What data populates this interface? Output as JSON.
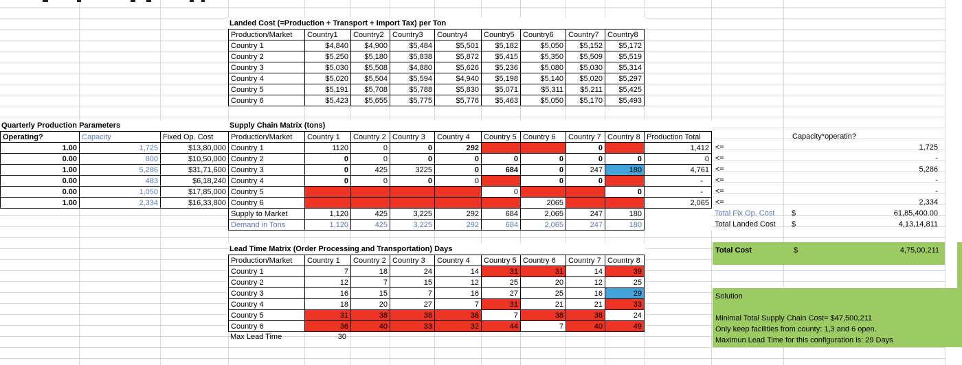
{
  "colors": {
    "red": "#ED3323",
    "blue_cell": "#45A3DA",
    "blue_text": "#5B7AB5",
    "green": "#9CCB63",
    "gridline": "#D9D9D9"
  },
  "landed_cost": {
    "title": "Landed Cost (=Production + Transport + Import Tax) per Ton",
    "corner_header": "Production/Market",
    "col_headers": [
      "Country1",
      "Country2",
      "Country3",
      "Country4",
      "Country5",
      "Country6",
      "Country7",
      "Country8"
    ],
    "rows": [
      {
        "label": "Country 1",
        "values": [
          "$4,840",
          "$4,900",
          "$5,484",
          "$5,501",
          "$5,182",
          "$5,050",
          "$5,152",
          "$5,172"
        ]
      },
      {
        "label": "Country 2",
        "values": [
          "$5,250",
          "$5,180",
          "$5,838",
          "$5,872",
          "$5,415",
          "$5,350",
          "$5,509",
          "$5,519"
        ]
      },
      {
        "label": "Country 3",
        "values": [
          "$5,030",
          "$5,508",
          "$4,880",
          "$5,626",
          "$5,236",
          "$5,080",
          "$5,030",
          "$5,314"
        ]
      },
      {
        "label": "Country 4",
        "values": [
          "$5,020",
          "$5,504",
          "$5,594",
          "$4,940",
          "$5,198",
          "$5,140",
          "$5,020",
          "$5,297"
        ]
      },
      {
        "label": "Country 5",
        "values": [
          "$5,191",
          "$5,708",
          "$5,788",
          "$5,830",
          "$5,071",
          "$5,311",
          "$5,211",
          "$5,425"
        ]
      },
      {
        "label": "Country 6",
        "values": [
          "$5,423",
          "$5,655",
          "$5,775",
          "$5,776",
          "$5,463",
          "$5,050",
          "$5,170",
          "$5,493"
        ]
      }
    ]
  },
  "production_params": {
    "title": "Quarterly Production Parameters",
    "headers": [
      "Operating?",
      "Capacity",
      "Fixed Op. Cost"
    ],
    "rows": [
      {
        "operating": "1.00",
        "capacity": "1,725",
        "fixed_cost": "$13,80,000"
      },
      {
        "operating": "0.00",
        "capacity": "800",
        "fixed_cost": "$10,50,000"
      },
      {
        "operating": "1.00",
        "capacity": "5,286",
        "fixed_cost": "$31,71,600"
      },
      {
        "operating": "0.00",
        "capacity": "483",
        "fixed_cost": "$6,18,240"
      },
      {
        "operating": "0.00",
        "capacity": "1,050",
        "fixed_cost": "$17,85,000"
      },
      {
        "operating": "1.00",
        "capacity": "2,334",
        "fixed_cost": "$16,33,800"
      }
    ]
  },
  "supply_matrix": {
    "title": "Supply Chain Matrix (tons)",
    "corner_header": "Production/Market",
    "col_headers": [
      "Country 1",
      "Country 2",
      "Country 3",
      "Country 4",
      "Country 5",
      "Country 6",
      "Country 7",
      "Country 8",
      "Production Total"
    ],
    "rows": [
      {
        "label": "Country 1",
        "cells": [
          {
            "v": "1120"
          },
          {
            "v": "0"
          },
          {
            "v": "0",
            "bold": true
          },
          {
            "v": "292",
            "bold": true
          },
          {
            "red": true
          },
          {
            "red": true
          },
          {
            "v": "0",
            "bold": true
          },
          {
            "red": true
          }
        ],
        "total": "1,412"
      },
      {
        "label": "Country 2",
        "cells": [
          {
            "v": "0",
            "bold": true
          },
          {
            "v": "0"
          },
          {
            "v": "0",
            "bold": true
          },
          {
            "v": "0",
            "bold": true
          },
          {
            "v": "0",
            "bold": true
          },
          {
            "v": "0",
            "bold": true
          },
          {
            "v": "0",
            "bold": true
          },
          {
            "v": "0",
            "bold": true
          }
        ],
        "total": "0"
      },
      {
        "label": "Country 3",
        "cells": [
          {
            "v": "0",
            "bold": true
          },
          {
            "v": "425"
          },
          {
            "v": "3225"
          },
          {
            "v": "0",
            "bold": true
          },
          {
            "v": "684",
            "bold": true
          },
          {
            "v": "0",
            "bold": true
          },
          {
            "v": "247"
          },
          {
            "v": "180",
            "blue": true
          }
        ],
        "total": "4,761"
      },
      {
        "label": "Country 4",
        "cells": [
          {
            "v": "0",
            "bold": true
          },
          {
            "v": "0"
          },
          {
            "v": "0",
            "bold": true
          },
          {
            "v": "0"
          },
          {
            "red": true
          },
          {
            "v": "0",
            "bold": true
          },
          {
            "v": "0",
            "bold": true
          },
          {
            "red": true
          }
        ],
        "total": "-"
      },
      {
        "label": "Country 5",
        "cells": [
          {
            "red": true
          },
          {
            "red": true
          },
          {
            "red": true
          },
          {
            "red": true
          },
          {
            "v": "0"
          },
          {
            "red": true
          },
          {
            "red": true
          },
          {
            "v": "0",
            "bold": true
          }
        ],
        "total": "-"
      },
      {
        "label": "Country 6",
        "cells": [
          {
            "red": true
          },
          {
            "red": true
          },
          {
            "red": true
          },
          {
            "red": true
          },
          {
            "red": true
          },
          {
            "v": "2065"
          },
          {
            "red": true
          },
          {
            "red": true
          }
        ],
        "total": "2,065"
      }
    ],
    "supply_row": {
      "label": "Supply to Market",
      "values": [
        "1,120",
        "425",
        "3,225",
        "292",
        "684",
        "2,065",
        "247",
        "180"
      ]
    },
    "demand_row": {
      "label": "Demand in Tons",
      "values": [
        "1,120",
        "425",
        "3,225",
        "292",
        "684",
        "2,065",
        "247",
        "180"
      ]
    },
    "constraint_op": "<=",
    "capacity_header": "Capacity*operatin?",
    "capacity_values": [
      "1,725",
      "-",
      "5,286",
      "-",
      "-",
      "2,334"
    ]
  },
  "totals": {
    "fix_op": {
      "label": "Total Fix Op. Cost",
      "currency": "$",
      "value": "61,85,400.00"
    },
    "landed": {
      "label": "Total Landed Cost",
      "currency": "$",
      "value": "4,13,14,811"
    },
    "total_cost": {
      "label": "Total Cost",
      "currency": "$",
      "value": "4,75,00,211"
    }
  },
  "lead_time": {
    "title": "Lead Time Matrix (Order Processing and Transportation) Days",
    "corner_header": "Production/Market",
    "col_headers": [
      "Country 1",
      "Country 2",
      "Country 3",
      "Country 4",
      "Country 5",
      "Country 6",
      "Country 7",
      "Country 8"
    ],
    "rows": [
      {
        "label": "Country 1",
        "cells": [
          {
            "v": "7"
          },
          {
            "v": "18"
          },
          {
            "v": "24"
          },
          {
            "v": "14"
          },
          {
            "v": "31",
            "red": true
          },
          {
            "v": "31",
            "red": true
          },
          {
            "v": "14"
          },
          {
            "v": "39",
            "red": true
          }
        ]
      },
      {
        "label": "Country 2",
        "cells": [
          {
            "v": "12"
          },
          {
            "v": "7"
          },
          {
            "v": "15"
          },
          {
            "v": "12"
          },
          {
            "v": "25"
          },
          {
            "v": "20"
          },
          {
            "v": "12"
          },
          {
            "v": "25"
          }
        ]
      },
      {
        "label": "Country 3",
        "cells": [
          {
            "v": "16"
          },
          {
            "v": "15"
          },
          {
            "v": "7"
          },
          {
            "v": "16"
          },
          {
            "v": "27"
          },
          {
            "v": "25"
          },
          {
            "v": "16"
          },
          {
            "v": "29",
            "blue": true
          }
        ]
      },
      {
        "label": "Country 4",
        "cells": [
          {
            "v": "18"
          },
          {
            "v": "20"
          },
          {
            "v": "27"
          },
          {
            "v": "7"
          },
          {
            "v": "31",
            "red": true
          },
          {
            "v": "21"
          },
          {
            "v": "21"
          },
          {
            "v": "33",
            "red": true
          }
        ]
      },
      {
        "label": "Country 5",
        "cells": [
          {
            "v": "31",
            "red": true
          },
          {
            "v": "38",
            "red": true
          },
          {
            "v": "38",
            "red": true
          },
          {
            "v": "38",
            "red": true
          },
          {
            "v": "7"
          },
          {
            "v": "38",
            "red": true
          },
          {
            "v": "38",
            "red": true
          },
          {
            "v": "24"
          }
        ]
      },
      {
        "label": "Country 6",
        "cells": [
          {
            "v": "36",
            "red": true
          },
          {
            "v": "40",
            "red": true
          },
          {
            "v": "33",
            "red": true
          },
          {
            "v": "32",
            "red": true
          },
          {
            "v": "44",
            "red": true
          },
          {
            "v": "7"
          },
          {
            "v": "40",
            "red": true
          },
          {
            "v": "49",
            "red": true
          }
        ]
      }
    ],
    "max_lead": {
      "label": "Max Lead Time",
      "value": "30"
    }
  },
  "solution": {
    "title": "Solution",
    "lines": [
      "Minimal Total Supply Chain Cost= $47,500,211",
      "Only keep facilities from county: 1,3 and 6 open.",
      "Maximun Lead Time for this configuration is: 29 Days"
    ]
  }
}
